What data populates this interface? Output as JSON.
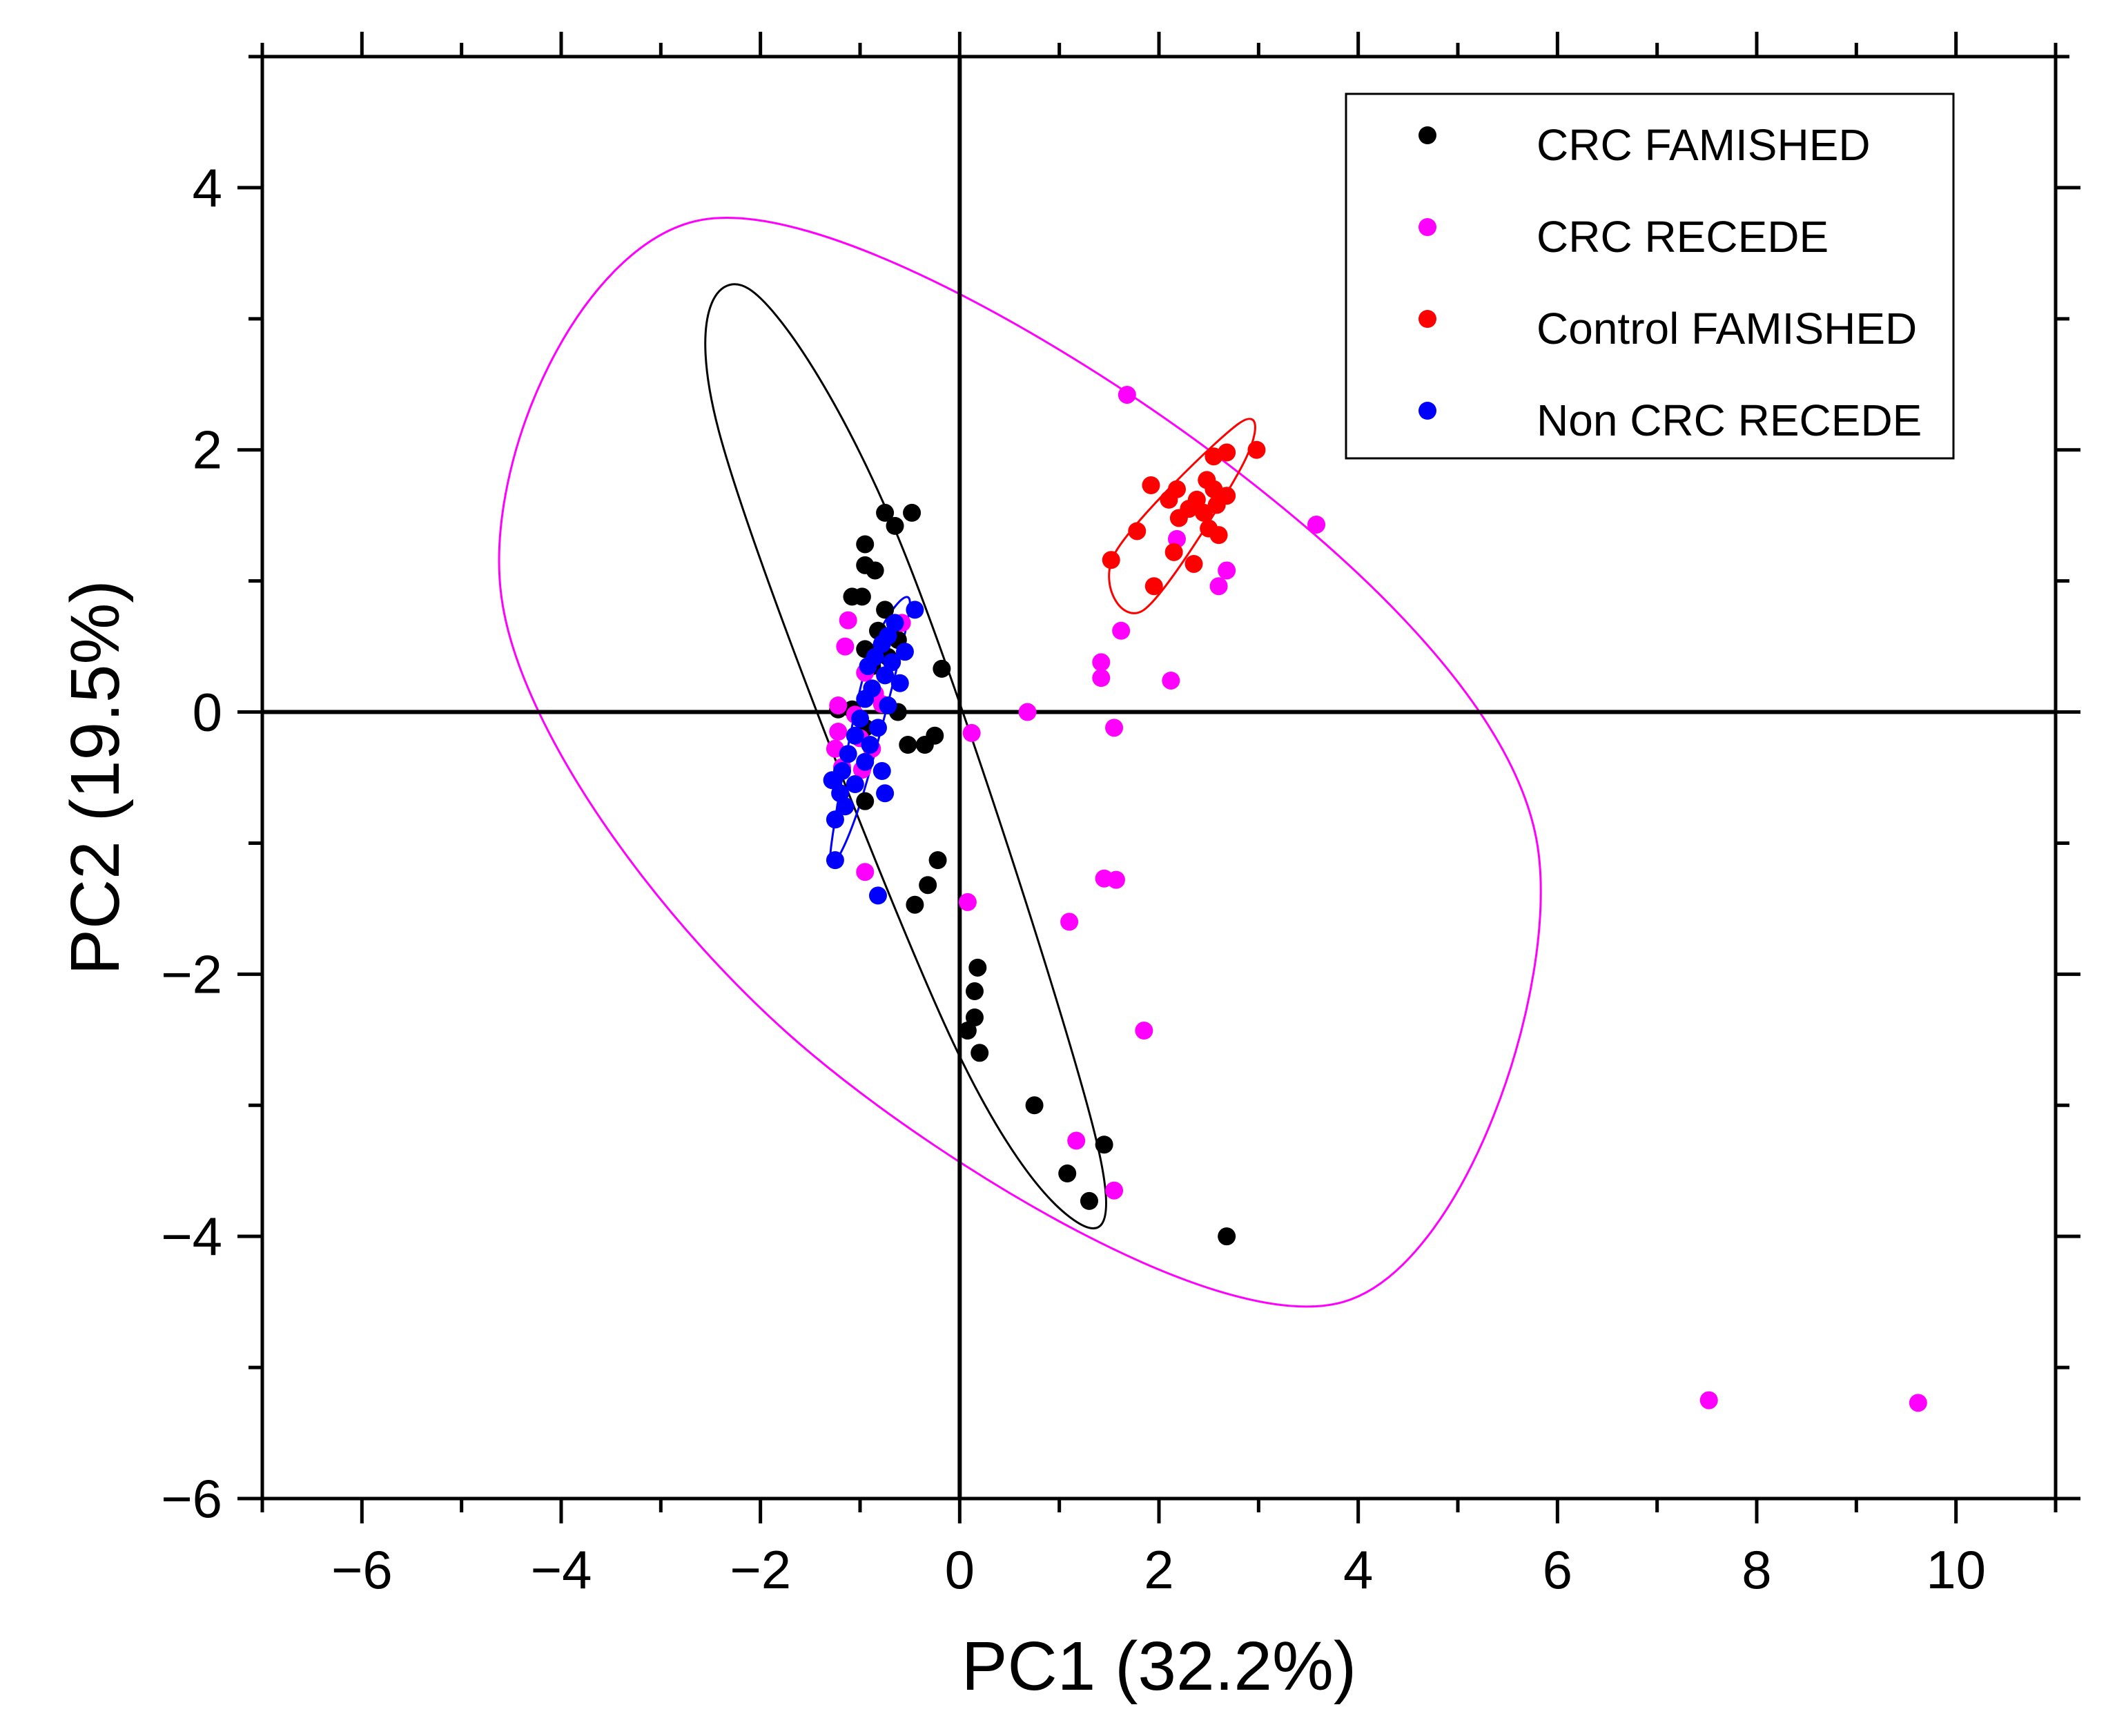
{
  "chart_data": {
    "type": "scatter",
    "title": "",
    "xlabel": "PC1 (32.2%)",
    "ylabel": "PC2 (19.5%)",
    "xlim": [
      -7,
      11
    ],
    "ylim": [
      -6,
      5
    ],
    "x_ticks": [
      -6,
      -4,
      -2,
      0,
      2,
      4,
      6,
      8,
      10
    ],
    "y_ticks": [
      -6,
      -4,
      -2,
      0,
      2,
      4
    ],
    "x_tick_labels": [
      "−6",
      "−4",
      "−2",
      "0",
      "2",
      "4",
      "6",
      "8",
      "10"
    ],
    "y_tick_labels": [
      "−6",
      "−4",
      "−2",
      "0",
      "2",
      "4"
    ],
    "grid": false,
    "legend_position": "top-right",
    "series": [
      {
        "name": "CRC FAMISHED",
        "color": "#000000",
        "points": [
          [
            -0.75,
            1.52
          ],
          [
            -0.48,
            1.52
          ],
          [
            -0.65,
            1.42
          ],
          [
            -0.95,
            1.28
          ],
          [
            -0.95,
            1.12
          ],
          [
            -0.85,
            1.08
          ],
          [
            -1.08,
            0.88
          ],
          [
            -0.98,
            0.88
          ],
          [
            -0.75,
            0.78
          ],
          [
            -0.82,
            0.62
          ],
          [
            -0.62,
            0.55
          ],
          [
            -0.95,
            0.48
          ],
          [
            -0.72,
            0.42
          ],
          [
            -0.88,
            0.35
          ],
          [
            -0.18,
            0.33
          ],
          [
            -1.22,
            0.02
          ],
          [
            -1.08,
            0.02
          ],
          [
            -0.62,
            0.0
          ],
          [
            -0.95,
            -0.12
          ],
          [
            -0.25,
            -0.18
          ],
          [
            -0.52,
            -0.25
          ],
          [
            -0.35,
            -0.25
          ],
          [
            -0.95,
            -0.68
          ],
          [
            -0.22,
            -1.13
          ],
          [
            -0.32,
            -1.32
          ],
          [
            -0.45,
            -1.47
          ],
          [
            0.18,
            -1.95
          ],
          [
            0.15,
            -2.13
          ],
          [
            0.15,
            -2.33
          ],
          [
            0.08,
            -2.43
          ],
          [
            0.2,
            -2.6
          ],
          [
            0.75,
            -3.0
          ],
          [
            1.45,
            -3.3
          ],
          [
            1.08,
            -3.52
          ],
          [
            1.3,
            -3.73
          ],
          [
            2.68,
            -4.0
          ]
        ]
      },
      {
        "name": "CRC RECEDE",
        "color": "#ff00ff",
        "points": [
          [
            1.68,
            2.42
          ],
          [
            3.58,
            1.43
          ],
          [
            2.18,
            1.32
          ],
          [
            2.68,
            1.08
          ],
          [
            2.6,
            0.96
          ],
          [
            -1.12,
            0.7
          ],
          [
            -0.58,
            0.68
          ],
          [
            -1.15,
            0.5
          ],
          [
            -0.95,
            0.3
          ],
          [
            1.62,
            0.62
          ],
          [
            1.42,
            0.38
          ],
          [
            1.42,
            0.26
          ],
          [
            2.12,
            0.24
          ],
          [
            -1.22,
            0.05
          ],
          [
            -0.85,
            0.14
          ],
          [
            -0.78,
            0.06
          ],
          [
            0.68,
            0.0
          ],
          [
            -1.05,
            -0.02
          ],
          [
            -1.22,
            -0.15
          ],
          [
            -1.0,
            -0.2
          ],
          [
            0.12,
            -0.16
          ],
          [
            1.55,
            -0.12
          ],
          [
            -1.25,
            -0.28
          ],
          [
            -0.88,
            -0.28
          ],
          [
            -1.18,
            -0.42
          ],
          [
            -0.98,
            -0.44
          ],
          [
            -0.95,
            -1.22
          ],
          [
            0.08,
            -1.45
          ],
          [
            1.45,
            -1.27
          ],
          [
            1.57,
            -1.28
          ],
          [
            1.1,
            -1.6
          ],
          [
            1.85,
            -2.43
          ],
          [
            1.17,
            -3.27
          ],
          [
            1.55,
            -3.65
          ],
          [
            7.52,
            -5.25
          ],
          [
            9.62,
            -5.27
          ]
        ]
      },
      {
        "name": "Control FAMISHED",
        "color": "#ff0000",
        "points": [
          [
            2.98,
            2.0
          ],
          [
            2.68,
            1.98
          ],
          [
            2.55,
            1.95
          ],
          [
            1.92,
            1.73
          ],
          [
            2.18,
            1.7
          ],
          [
            2.48,
            1.77
          ],
          [
            2.55,
            1.7
          ],
          [
            2.1,
            1.62
          ],
          [
            2.38,
            1.62
          ],
          [
            2.68,
            1.65
          ],
          [
            2.3,
            1.55
          ],
          [
            2.58,
            1.58
          ],
          [
            2.2,
            1.48
          ],
          [
            2.45,
            1.52
          ],
          [
            1.78,
            1.38
          ],
          [
            2.5,
            1.4
          ],
          [
            2.6,
            1.35
          ],
          [
            2.15,
            1.22
          ],
          [
            2.35,
            1.13
          ],
          [
            1.52,
            1.16
          ],
          [
            1.95,
            0.96
          ]
        ]
      },
      {
        "name": "Non CRC RECEDE",
        "color": "#0000ff",
        "points": [
          [
            -0.45,
            0.78
          ],
          [
            -0.65,
            0.68
          ],
          [
            -0.72,
            0.58
          ],
          [
            -0.78,
            0.52
          ],
          [
            -0.55,
            0.46
          ],
          [
            -0.85,
            0.42
          ],
          [
            -0.68,
            0.38
          ],
          [
            -0.92,
            0.35
          ],
          [
            -0.75,
            0.28
          ],
          [
            -0.6,
            0.22
          ],
          [
            -0.88,
            0.18
          ],
          [
            -0.95,
            0.1
          ],
          [
            -0.72,
            0.05
          ],
          [
            -1.0,
            -0.05
          ],
          [
            -0.82,
            -0.12
          ],
          [
            -1.05,
            -0.18
          ],
          [
            -0.9,
            -0.25
          ],
          [
            -1.12,
            -0.32
          ],
          [
            -0.95,
            -0.38
          ],
          [
            -1.18,
            -0.45
          ],
          [
            -0.78,
            -0.45
          ],
          [
            -1.28,
            -0.52
          ],
          [
            -1.05,
            -0.55
          ],
          [
            -1.2,
            -0.62
          ],
          [
            -0.75,
            -0.62
          ],
          [
            -1.15,
            -0.72
          ],
          [
            -1.25,
            -0.82
          ],
          [
            -1.25,
            -1.13
          ],
          [
            -0.82,
            -1.4
          ]
        ]
      }
    ],
    "ellipses": [
      {
        "name": "CRC RECEDE 95% ellipse",
        "color": "#ff00ff",
        "center": [
          0.55,
          -0.38
        ],
        "path_points": [
          [
            -2.62,
            3.75
          ],
          [
            -4.6,
            0.88
          ],
          [
            -1.5,
            -2.6
          ],
          [
            3.85,
            -4.5
          ],
          [
            5.8,
            -1.02
          ],
          [
            2.5,
            2.0
          ]
        ]
      },
      {
        "name": "CRC FAMISHED 95% ellipse",
        "color": "#000000",
        "center": [
          -0.42,
          -0.27
        ],
        "path_points": [
          [
            -2.12,
            3.23
          ],
          [
            -2.42,
            2.15
          ],
          [
            -0.2,
            -2.3
          ],
          [
            1.1,
            -3.85
          ],
          [
            1.35,
            -3.2
          ],
          [
            -0.6,
            1.3
          ]
        ]
      },
      {
        "name": "Control FAMISHED 95% ellipse",
        "color": "#ff0000",
        "center": [
          2.28,
          1.48
        ],
        "path_points": [
          [
            2.8,
            2.2
          ],
          [
            1.55,
            1.2
          ],
          [
            1.85,
            0.78
          ],
          [
            2.85,
            1.9
          ]
        ]
      },
      {
        "name": "Non CRC RECEDE 95% ellipse",
        "color": "#0000ff",
        "center": [
          -0.92,
          -0.17
        ],
        "path_points": [
          [
            -0.5,
            0.82
          ],
          [
            -0.92,
            0.4
          ],
          [
            -1.3,
            -1.1
          ],
          [
            -1.0,
            -0.7
          ]
        ]
      }
    ]
  }
}
